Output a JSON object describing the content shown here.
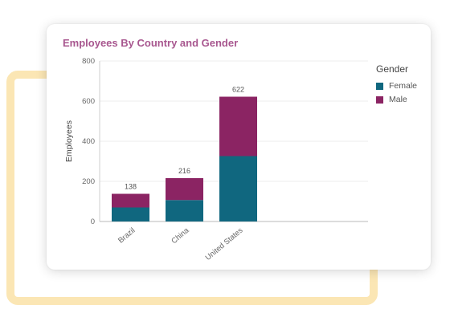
{
  "chart_data": {
    "type": "bar",
    "stacked": true,
    "title": "Employees By Country and Gender",
    "xlabel": "",
    "ylabel": "Employees",
    "ylim": [
      0,
      800
    ],
    "yticks": [
      0,
      200,
      400,
      600,
      800
    ],
    "grid": true,
    "categories": [
      "Brazil",
      "China",
      "United States"
    ],
    "series": [
      {
        "name": "Female",
        "color": "#10677f",
        "values": [
          70,
          107,
          326
        ]
      },
      {
        "name": "Male",
        "color": "#8b2463",
        "values": [
          68,
          109,
          296
        ]
      }
    ],
    "totals": [
      138,
      216,
      622
    ],
    "legend": {
      "title": "Gender",
      "placement": "right"
    }
  },
  "colors": {
    "title": "#a8578f",
    "accent_frame": "#fbe6b4"
  }
}
